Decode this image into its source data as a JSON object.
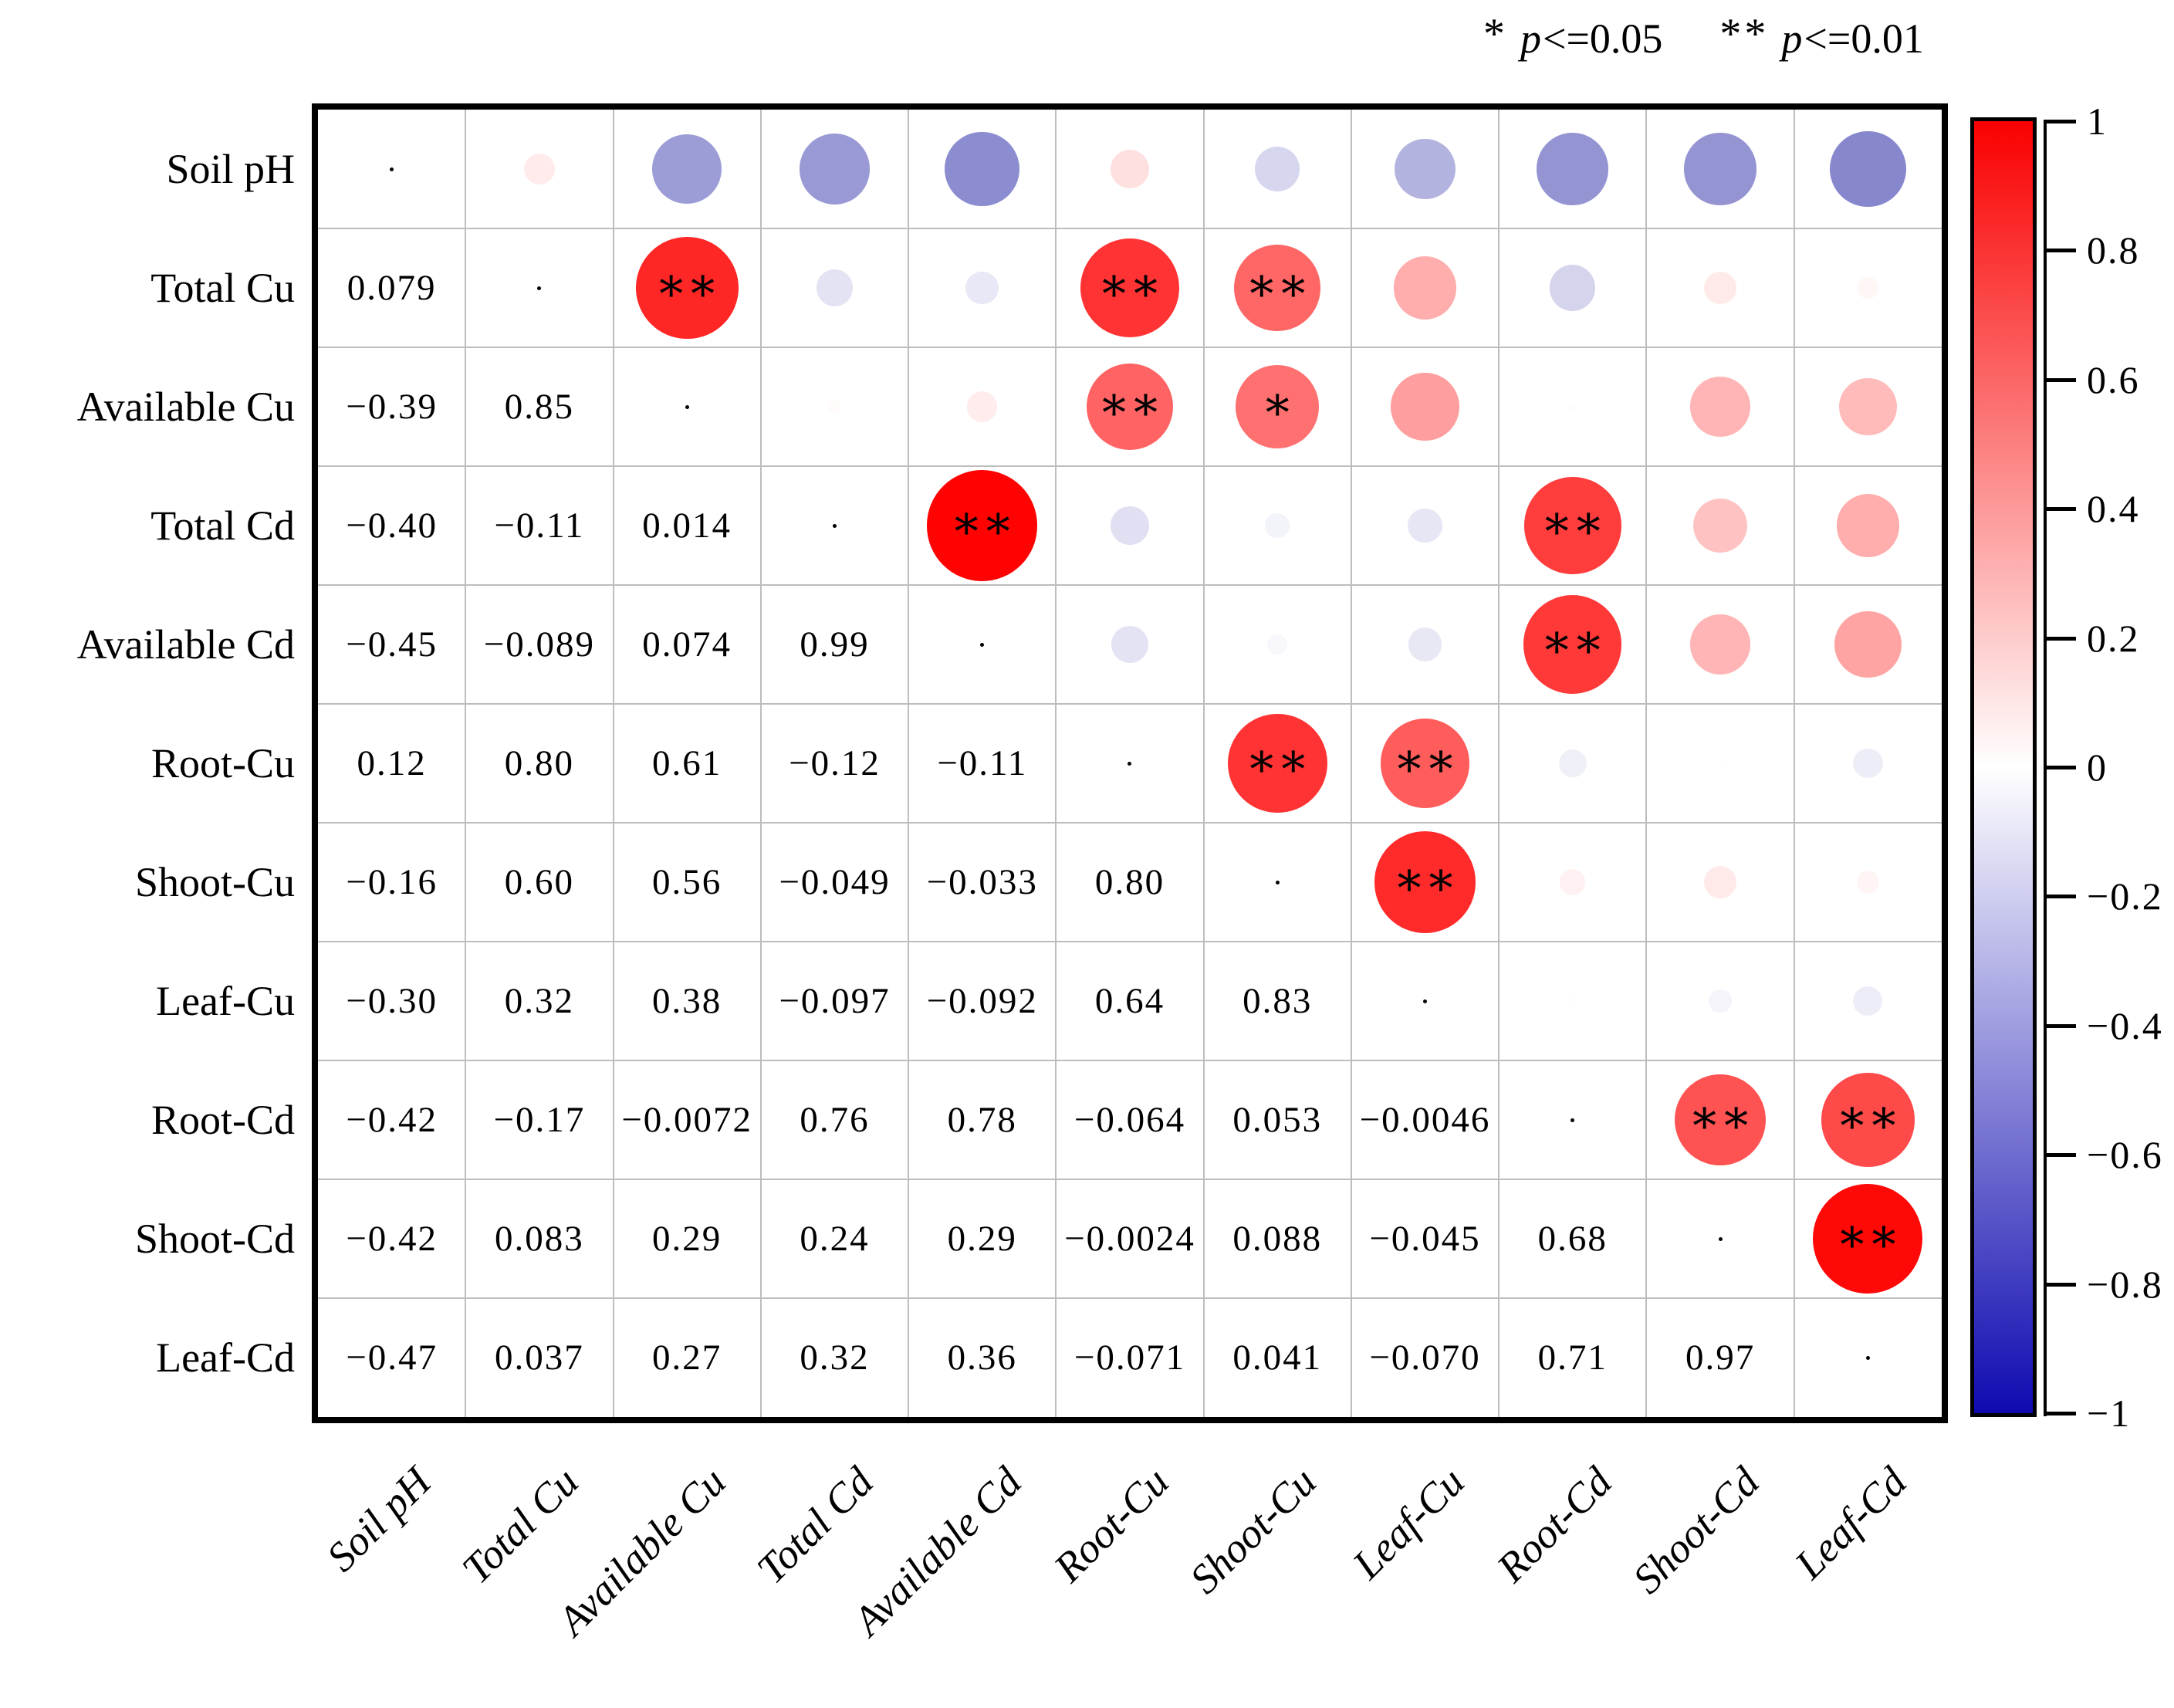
{
  "legend": {
    "sig1": {
      "star": "*",
      "p": "p",
      "cond": "<=0.05"
    },
    "sig2": {
      "star": "**",
      "p": "p",
      "cond": "<=0.01"
    }
  },
  "chart_data": {
    "type": "heatmap",
    "variant": "correlation bubble matrix: lower triangle = coefficient text, upper triangle = circles sized/colored by r with significance stars, diagonal = dots",
    "labels": [
      "Soil pH",
      "Total Cu",
      "Available Cu",
      "Total Cd",
      "Available Cd",
      "Root-Cu",
      "Shoot-Cu",
      "Leaf-Cu",
      "Root-Cd",
      "Shoot-Cd",
      "Leaf-Cd"
    ],
    "lower_triangle_text": [
      [],
      [
        "0.079"
      ],
      [
        "−0.39",
        "0.85"
      ],
      [
        "−0.40",
        "−0.11",
        "0.014"
      ],
      [
        "−0.45",
        "−0.089",
        "0.074",
        "0.99"
      ],
      [
        "0.12",
        "0.80",
        "0.61",
        "−0.12",
        "−0.11"
      ],
      [
        "−0.16",
        "0.60",
        "0.56",
        "−0.049",
        "−0.033",
        "0.80"
      ],
      [
        "−0.30",
        "0.32",
        "0.38",
        "−0.097",
        "−0.092",
        "0.64",
        "0.83"
      ],
      [
        "−0.42",
        "−0.17",
        "−0.0072",
        "0.76",
        "0.78",
        "−0.064",
        "0.053",
        "−0.0046"
      ],
      [
        "−0.42",
        "0.083",
        "0.29",
        "0.24",
        "0.29",
        "−0.0024",
        "0.088",
        "−0.045",
        "0.68"
      ],
      [
        "−0.47",
        "0.037",
        "0.27",
        "0.32",
        "0.36",
        "−0.071",
        "0.041",
        "−0.070",
        "0.71",
        "0.97"
      ]
    ],
    "significance": {
      "1,2": "**",
      "1,5": "**",
      "1,6": "**",
      "2,5": "**",
      "2,6": "*",
      "3,4": "**",
      "3,8": "**",
      "4,8": "**",
      "5,6": "**",
      "5,7": "**",
      "6,7": "**",
      "8,9": "**",
      "8,10": "**",
      "9,10": "**"
    },
    "bubble_colors": {
      "positive": "#ff0000",
      "negative": "#000096",
      "zero": "#ffffff"
    },
    "colorbar": {
      "min": -1,
      "max": 1,
      "positive_color": "#fa0000",
      "zero_color": "#ffffff",
      "negative_color": "#0f0ab0",
      "ticks": [
        "1",
        "0.8",
        "0.6",
        "0.4",
        "0.2",
        "0",
        "−0.2",
        "−0.4",
        "−0.6",
        "−0.8",
        "−1"
      ]
    },
    "grid": true,
    "legend_position": "top-right"
  }
}
